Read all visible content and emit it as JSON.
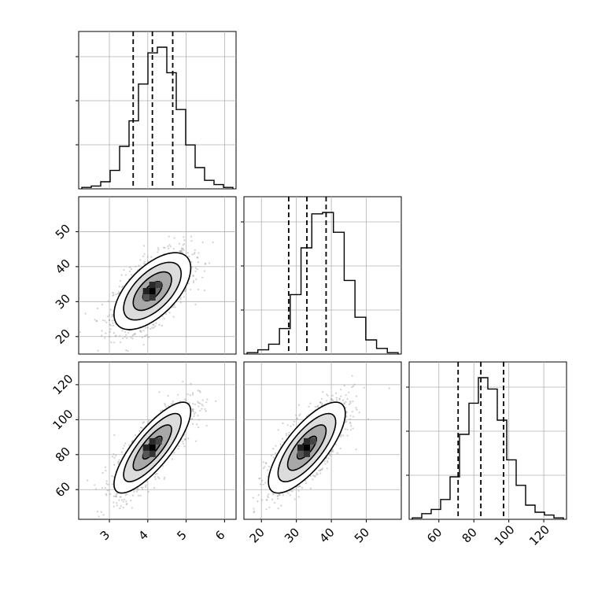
{
  "chart_data": {
    "type": "corner",
    "grid": true,
    "colors": {
      "line": "#000000",
      "grid": "#b0b0b0",
      "scatter": "#9a9a9a",
      "hist_fill": "#ffffff"
    },
    "params": [
      {
        "ticks": [
          "3",
          "4",
          "5",
          "6"
        ],
        "range": [
          2.2,
          6.3
        ],
        "quantiles": [
          3.62,
          4.12,
          4.65
        ],
        "hist_mean": 4.12,
        "hist_sd": 0.5
      },
      {
        "ticks": [
          "20",
          "30",
          "40",
          "50"
        ],
        "range": [
          15,
          60
        ],
        "quantiles": [
          27.8,
          33.0,
          38.5
        ],
        "hist_mean": 33.0,
        "hist_sd": 5.5
      },
      {
        "ticks": [
          "60",
          "80",
          "100",
          "120"
        ],
        "range": [
          43,
          133
        ],
        "quantiles": [
          71,
          84,
          97
        ],
        "hist_mean": 84,
        "hist_sd": 13
      }
    ],
    "hist_density": [
      [
        0.01,
        0.02,
        0.05,
        0.13,
        0.3,
        0.48,
        0.74,
        0.96,
        1.0,
        0.82,
        0.56,
        0.31,
        0.15,
        0.06,
        0.03,
        0.01
      ],
      [
        0.01,
        0.03,
        0.07,
        0.18,
        0.42,
        0.75,
        0.99,
        1.0,
        0.86,
        0.52,
        0.26,
        0.1,
        0.04,
        0.01
      ],
      [
        0.01,
        0.04,
        0.07,
        0.14,
        0.3,
        0.6,
        0.82,
        1.0,
        0.92,
        0.7,
        0.42,
        0.24,
        0.1,
        0.05,
        0.03,
        0.01
      ]
    ],
    "pairs": [
      {
        "x_param": 0,
        "y_param": 1,
        "correlation": 0.6
      },
      {
        "x_param": 0,
        "y_param": 2,
        "correlation": 0.8
      },
      {
        "x_param": 1,
        "y_param": 2,
        "correlation": 0.75
      }
    ],
    "contour_levels_sigma": [
      0.5,
      1.0,
      1.5,
      2.0
    ]
  }
}
